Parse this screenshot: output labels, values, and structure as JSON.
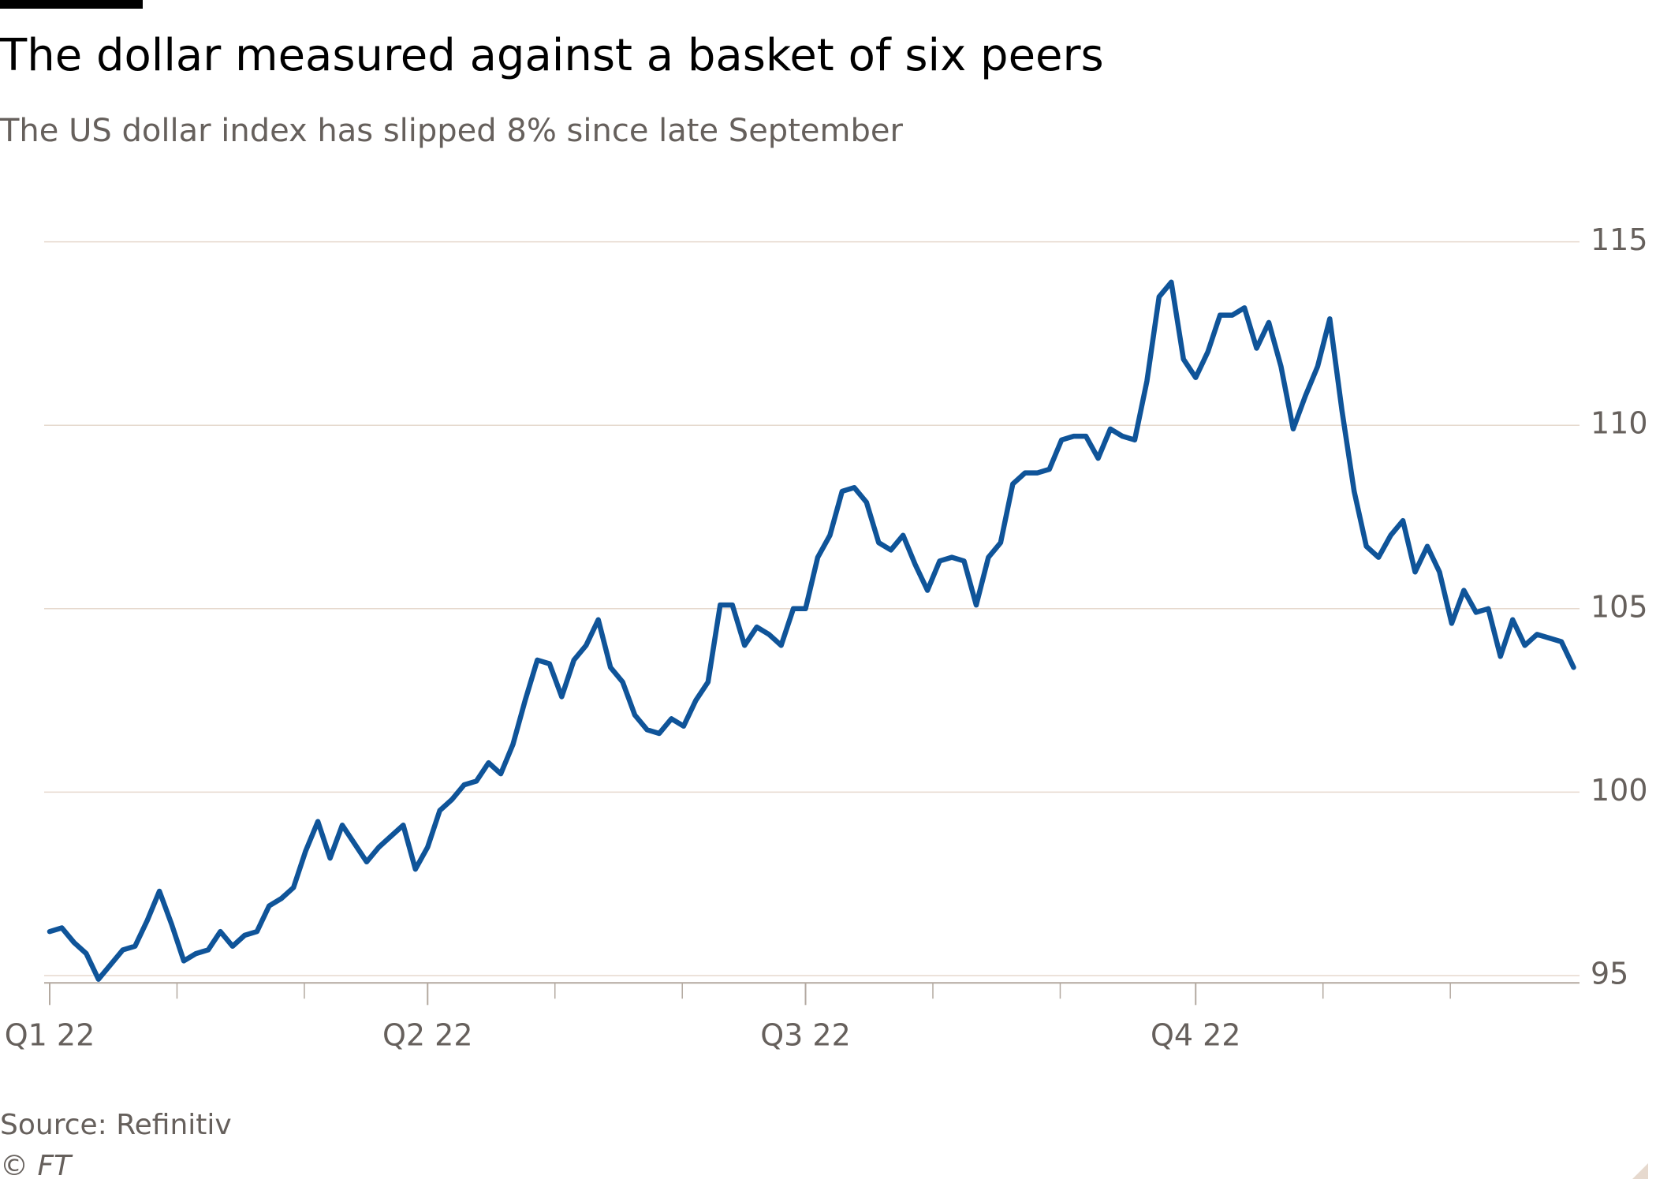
{
  "chart_data": {
    "type": "line",
    "title": "The dollar measured against a basket of six peers",
    "subtitle": "The US dollar index has slipped 8% since late September",
    "source": "Source: Refinitiv",
    "credit": "© FT",
    "categories": [
      "Q1 22",
      null,
      null,
      null,
      null,
      null,
      null,
      null,
      null,
      null,
      null,
      null,
      null,
      null,
      null,
      null,
      null,
      null,
      null,
      null,
      null,
      null,
      null,
      null,
      null,
      null,
      null,
      null,
      null,
      null,
      null,
      "Q2 22",
      null,
      null,
      null,
      null,
      null,
      null,
      null,
      null,
      null,
      null,
      null,
      null,
      null,
      null,
      null,
      null,
      null,
      null,
      null,
      null,
      null,
      null,
      null,
      null,
      null,
      null,
      null,
      null,
      null,
      null,
      "Q3 22",
      null,
      null,
      null,
      null,
      null,
      null,
      null,
      null,
      null,
      null,
      null,
      null,
      null,
      null,
      null,
      null,
      null,
      null,
      null,
      null,
      null,
      null,
      null,
      null,
      null,
      null,
      null,
      null,
      null,
      null,
      null,
      "Q4 22",
      null,
      null,
      null,
      null,
      null,
      null,
      null,
      null,
      null,
      null,
      null,
      null,
      null,
      null,
      null,
      null,
      null,
      null,
      null,
      null,
      null,
      null,
      null,
      null,
      null,
      null,
      null,
      null,
      null,
      null,
      null
    ],
    "series": [
      {
        "name": "US dollar index",
        "color": "#0f5499",
        "values": [
          96.2,
          96.3,
          95.9,
          95.6,
          94.9,
          95.3,
          95.7,
          95.8,
          96.5,
          97.3,
          96.4,
          95.4,
          95.6,
          95.7,
          96.2,
          95.8,
          96.1,
          96.2,
          96.9,
          97.1,
          97.4,
          98.4,
          99.2,
          98.2,
          99.1,
          98.6,
          98.1,
          98.5,
          98.8,
          99.1,
          97.9,
          98.5,
          99.5,
          99.8,
          100.2,
          100.3,
          100.8,
          100.5,
          101.3,
          102.5,
          103.6,
          103.5,
          102.6,
          103.6,
          104.0,
          104.7,
          103.4,
          103.0,
          102.1,
          101.7,
          101.6,
          102.0,
          101.8,
          102.5,
          103.0,
          105.1,
          105.1,
          104.0,
          104.5,
          104.3,
          104.0,
          105.0,
          105.0,
          106.4,
          107.0,
          108.2,
          108.3,
          107.9,
          106.8,
          106.6,
          107.0,
          106.2,
          105.5,
          106.3,
          106.4,
          106.3,
          105.1,
          106.4,
          106.8,
          108.4,
          108.7,
          108.7,
          108.8,
          109.6,
          109.7,
          109.7,
          109.1,
          109.9,
          109.7,
          109.6,
          111.2,
          113.5,
          113.9,
          111.8,
          111.3,
          112.0,
          113.0,
          113.0,
          113.2,
          112.1,
          112.8,
          111.6,
          109.9,
          110.8,
          111.6,
          112.9,
          110.4,
          108.2,
          106.7,
          106.4,
          107.0,
          107.4,
          106.0,
          106.7,
          106.0,
          104.6,
          105.5,
          104.9,
          105.0,
          103.7,
          104.7,
          104.0,
          104.3,
          104.2,
          104.1,
          103.4
        ]
      }
    ],
    "ylim": [
      94.8,
      115
    ],
    "yticks": [
      95,
      100,
      105,
      110,
      115
    ],
    "grid": true
  }
}
